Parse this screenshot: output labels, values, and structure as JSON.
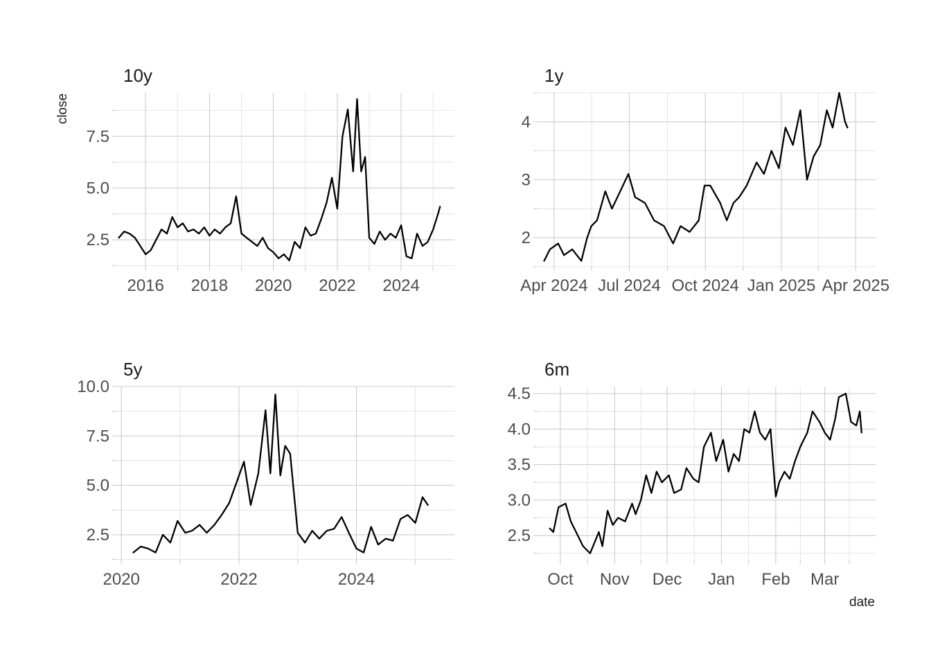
{
  "figure": {
    "xlabel": "date",
    "ylabel": "close"
  },
  "chart_data": [
    {
      "type": "line",
      "title": "10y",
      "x_axis_type": "date",
      "xlim": [
        "2015-02-01",
        "2025-09-01"
      ],
      "ylim": [
        1.2,
        9.6
      ],
      "x_ticks": [
        "2016-01-01",
        "2018-01-01",
        "2020-01-01",
        "2022-01-01",
        "2024-01-01"
      ],
      "x_tick_labels": [
        "2016",
        "2018",
        "2020",
        "2022",
        "2024"
      ],
      "y_ticks": [
        2.5,
        5.0,
        7.5
      ],
      "y_tick_labels": [
        "2.5",
        "5.0",
        "7.5"
      ],
      "grid": true,
      "series": [
        {
          "x": [
            "2015-03-01",
            "2015-05-01",
            "2015-07-01",
            "2015-09-01",
            "2015-11-01",
            "2016-01-01",
            "2016-03-01",
            "2016-05-01",
            "2016-07-01",
            "2016-09-01",
            "2016-11-01",
            "2017-01-01",
            "2017-03-01",
            "2017-05-01",
            "2017-07-01",
            "2017-09-01",
            "2017-11-01",
            "2018-01-01",
            "2018-03-01",
            "2018-05-01",
            "2018-07-01",
            "2018-09-01",
            "2018-11-01",
            "2019-01-01",
            "2019-03-01",
            "2019-05-01",
            "2019-07-01",
            "2019-09-01",
            "2019-11-01",
            "2020-01-01",
            "2020-03-01",
            "2020-05-01",
            "2020-07-01",
            "2020-09-01",
            "2020-11-01",
            "2021-01-01",
            "2021-03-01",
            "2021-05-01",
            "2021-07-01",
            "2021-09-01",
            "2021-11-01",
            "2022-01-01",
            "2022-03-01",
            "2022-05-01",
            "2022-07-01",
            "2022-08-15",
            "2022-10-01",
            "2022-11-15",
            "2023-01-01",
            "2023-03-01",
            "2023-05-01",
            "2023-07-01",
            "2023-09-01",
            "2023-11-01",
            "2024-01-01",
            "2024-03-01",
            "2024-05-01",
            "2024-07-01",
            "2024-09-01",
            "2024-11-01",
            "2025-01-01",
            "2025-03-01",
            "2025-03-20"
          ],
          "values": [
            2.6,
            2.9,
            2.8,
            2.6,
            2.2,
            1.8,
            2.0,
            2.5,
            3.0,
            2.8,
            3.6,
            3.1,
            3.3,
            2.9,
            3.0,
            2.8,
            3.1,
            2.7,
            3.0,
            2.8,
            3.1,
            3.3,
            4.6,
            2.8,
            2.6,
            2.4,
            2.2,
            2.6,
            2.1,
            1.9,
            1.6,
            1.8,
            1.5,
            2.4,
            2.1,
            3.1,
            2.7,
            2.8,
            3.5,
            4.3,
            5.5,
            4.0,
            7.5,
            8.8,
            5.8,
            9.3,
            5.8,
            6.5,
            2.6,
            2.3,
            2.9,
            2.5,
            2.8,
            2.6,
            3.2,
            1.7,
            1.6,
            2.8,
            2.2,
            2.4,
            3.0,
            3.8,
            4.1
          ]
        }
      ]
    },
    {
      "type": "line",
      "title": "1y",
      "x_axis_type": "date",
      "xlim": [
        "2024-03-12",
        "2025-04-25"
      ],
      "ylim": [
        1.5,
        4.5
      ],
      "x_ticks": [
        "2024-04-01",
        "2024-07-01",
        "2024-10-01",
        "2025-01-01",
        "2025-04-01"
      ],
      "x_tick_labels": [
        "Apr 2024",
        "Jul 2024",
        "Oct 2024",
        "Jan 2025",
        "Apr 2025"
      ],
      "y_ticks": [
        2,
        3,
        4
      ],
      "y_tick_labels": [
        "2",
        "3",
        "4"
      ],
      "grid": true,
      "series": [
        {
          "x": [
            "2024-03-20",
            "2024-03-27",
            "2024-04-06",
            "2024-04-13",
            "2024-04-23",
            "2024-05-04",
            "2024-05-11",
            "2024-05-16",
            "2024-05-23",
            "2024-06-02",
            "2024-06-10",
            "2024-06-20",
            "2024-06-30",
            "2024-07-08",
            "2024-07-20",
            "2024-07-31",
            "2024-08-12",
            "2024-08-23",
            "2024-09-01",
            "2024-09-12",
            "2024-09-23",
            "2024-09-30",
            "2024-10-07",
            "2024-10-19",
            "2024-10-27",
            "2024-11-04",
            "2024-11-11",
            "2024-11-20",
            "2024-12-02",
            "2024-12-11",
            "2024-12-20",
            "2024-12-29",
            "2025-01-06",
            "2025-01-15",
            "2025-01-24",
            "2025-02-01",
            "2025-02-09",
            "2025-02-17",
            "2025-02-25",
            "2025-03-04",
            "2025-03-12",
            "2025-03-19",
            "2025-03-22"
          ],
          "values": [
            1.6,
            1.8,
            1.9,
            1.7,
            1.8,
            1.6,
            2.0,
            2.2,
            2.3,
            2.8,
            2.5,
            2.8,
            3.1,
            2.7,
            2.6,
            2.3,
            2.2,
            1.9,
            2.2,
            2.1,
            2.3,
            2.9,
            2.9,
            2.6,
            2.3,
            2.6,
            2.7,
            2.9,
            3.3,
            3.1,
            3.5,
            3.2,
            3.9,
            3.6,
            4.2,
            3.0,
            3.4,
            3.6,
            4.2,
            3.9,
            4.5,
            4.0,
            3.9
          ]
        }
      ]
    },
    {
      "type": "line",
      "title": "5y",
      "x_axis_type": "date",
      "xlim": [
        "2019-12-01",
        "2025-09-01"
      ],
      "ylim": [
        1.2,
        10.0
      ],
      "x_ticks": [
        "2020-01-01",
        "2022-01-01",
        "2024-01-01"
      ],
      "x_tick_labels": [
        "2020",
        "2022",
        "2024"
      ],
      "y_ticks": [
        2.5,
        5.0,
        7.5,
        10.0
      ],
      "y_tick_labels": [
        "2.5",
        "5.0",
        "7.5",
        "10.0"
      ],
      "grid": true,
      "series": [
        {
          "x": [
            "2020-03-15",
            "2020-05-01",
            "2020-06-15",
            "2020-08-01",
            "2020-09-15",
            "2020-11-01",
            "2020-12-15",
            "2021-02-01",
            "2021-03-15",
            "2021-05-01",
            "2021-06-15",
            "2021-08-01",
            "2021-09-15",
            "2021-11-01",
            "2021-12-15",
            "2022-02-01",
            "2022-03-15",
            "2022-05-01",
            "2022-06-15",
            "2022-07-15",
            "2022-08-15",
            "2022-09-15",
            "2022-10-15",
            "2022-11-15",
            "2023-01-01",
            "2023-02-15",
            "2023-04-01",
            "2023-05-15",
            "2023-07-01",
            "2023-08-15",
            "2023-10-01",
            "2023-11-15",
            "2024-01-01",
            "2024-02-15",
            "2024-04-01",
            "2024-05-15",
            "2024-07-01",
            "2024-08-15",
            "2024-10-01",
            "2024-11-15",
            "2025-01-01",
            "2025-02-15",
            "2025-03-20"
          ],
          "values": [
            1.6,
            1.9,
            1.8,
            1.6,
            2.5,
            2.1,
            3.2,
            2.6,
            2.7,
            3.0,
            2.6,
            3.0,
            3.5,
            4.1,
            5.1,
            6.2,
            4.0,
            5.6,
            8.8,
            5.6,
            9.6,
            5.5,
            7.0,
            6.6,
            2.6,
            2.1,
            2.7,
            2.3,
            2.7,
            2.8,
            3.4,
            2.6,
            1.8,
            1.6,
            2.9,
            2.0,
            2.3,
            2.2,
            3.3,
            3.5,
            3.1,
            4.4,
            4.0
          ]
        }
      ]
    },
    {
      "type": "line",
      "title": "6m",
      "x_axis_type": "date",
      "xlim": [
        "2024-09-18",
        "2025-03-30"
      ],
      "ylim": [
        2.15,
        4.6
      ],
      "x_ticks": [
        "2024-10-01",
        "2024-11-01",
        "2024-12-01",
        "2025-01-01",
        "2025-02-01",
        "2025-03-01"
      ],
      "x_tick_labels": [
        "Oct",
        "Nov",
        "Dec",
        "Jan",
        "Feb",
        "Mar"
      ],
      "y_ticks": [
        2.5,
        3.0,
        3.5,
        4.0,
        4.5
      ],
      "y_tick_labels": [
        "2.5",
        "3.0",
        "3.5",
        "4.0",
        "4.5"
      ],
      "grid": true,
      "series": [
        {
          "x": [
            "2024-09-25",
            "2024-09-27",
            "2024-09-30",
            "2024-10-04",
            "2024-10-07",
            "2024-10-10",
            "2024-10-14",
            "2024-10-18",
            "2024-10-23",
            "2024-10-25",
            "2024-10-28",
            "2024-10-31",
            "2024-11-03",
            "2024-11-07",
            "2024-11-11",
            "2024-11-13",
            "2024-11-16",
            "2024-11-19",
            "2024-11-22",
            "2024-11-25",
            "2024-11-28",
            "2024-12-02",
            "2024-12-05",
            "2024-12-09",
            "2024-12-12",
            "2024-12-16",
            "2024-12-19",
            "2024-12-22",
            "2024-12-26",
            "2024-12-29",
            "2025-01-02",
            "2025-01-05",
            "2025-01-08",
            "2025-01-11",
            "2025-01-14",
            "2025-01-17",
            "2025-01-20",
            "2025-01-23",
            "2025-01-26",
            "2025-01-29",
            "2025-02-01",
            "2025-02-03",
            "2025-02-06",
            "2025-02-09",
            "2025-02-12",
            "2025-02-15",
            "2025-02-19",
            "2025-02-22",
            "2025-02-26",
            "2025-03-01",
            "2025-03-04",
            "2025-03-07",
            "2025-03-09",
            "2025-03-13",
            "2025-03-16",
            "2025-03-19",
            "2025-03-21",
            "2025-03-22"
          ],
          "values": [
            2.6,
            2.55,
            2.9,
            2.95,
            2.7,
            2.55,
            2.35,
            2.25,
            2.55,
            2.35,
            2.85,
            2.65,
            2.75,
            2.7,
            2.95,
            2.8,
            3.0,
            3.35,
            3.1,
            3.4,
            3.25,
            3.35,
            3.1,
            3.15,
            3.45,
            3.3,
            3.25,
            3.75,
            3.95,
            3.55,
            3.85,
            3.4,
            3.65,
            3.55,
            4.0,
            3.95,
            4.25,
            3.95,
            3.85,
            4.0,
            3.05,
            3.25,
            3.4,
            3.3,
            3.55,
            3.75,
            3.95,
            4.25,
            4.1,
            3.95,
            3.85,
            4.15,
            4.45,
            4.5,
            4.1,
            4.05,
            4.25,
            3.95
          ]
        }
      ]
    }
  ]
}
